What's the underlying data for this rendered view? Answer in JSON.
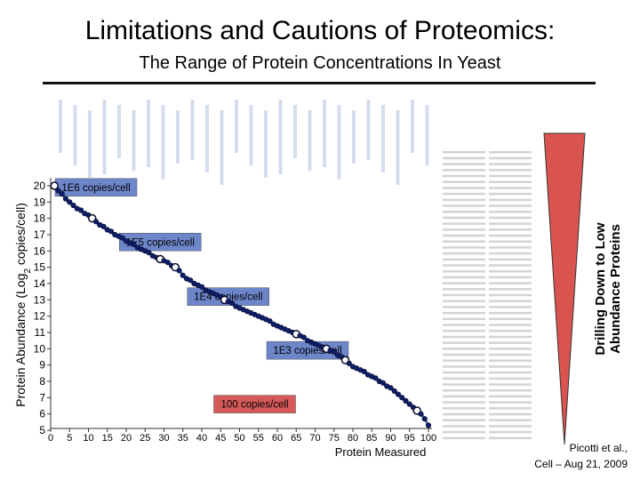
{
  "slide": {
    "title": "Limitations and Cautions of Proteomics:",
    "subtitle": "The Range of Protein Concentrations In Yeast",
    "side_label_line1": "Drilling Down to Low",
    "side_label_line2": "Abundance Proteins",
    "citation_line1": "Picotti et al.,",
    "citation_line2": "Cell – Aug 21, 2009"
  },
  "colors": {
    "line": "#1f3f7a",
    "marker_fill": "#0d1f6b",
    "marker_highlight": "#ffffff",
    "label_box_blue": "#6d86c9",
    "label_box_red": "#d65a5a",
    "triangle": "#d9534f"
  },
  "chart_data": {
    "type": "scatter",
    "xlabel": "Protein Measured",
    "ylabel": "Protein Abundance (Log2 copies/cell)",
    "xlim": [
      0,
      100
    ],
    "ylim": [
      5,
      20
    ],
    "x_ticks": [
      0,
      5,
      10,
      15,
      20,
      25,
      30,
      35,
      40,
      45,
      50,
      55,
      60,
      65,
      70,
      75,
      80,
      85,
      90,
      95,
      100
    ],
    "y_ticks": [
      5,
      6,
      7,
      8,
      9,
      10,
      11,
      12,
      13,
      14,
      15,
      16,
      17,
      18,
      19,
      20
    ],
    "grid": false,
    "annotations": [
      {
        "text": "1E6 copies/cell",
        "x": 12,
        "y": 19.9,
        "color": "blue"
      },
      {
        "text": "1E5 copies/cell",
        "x": 29,
        "y": 16.55,
        "color": "blue"
      },
      {
        "text": "1E4 copies/cell",
        "x": 47,
        "y": 13.2,
        "color": "blue"
      },
      {
        "text": "1E3 copies/cell",
        "x": 68,
        "y": 9.9,
        "color": "blue"
      },
      {
        "text": "100 copies/cell",
        "x": 54,
        "y": 6.6,
        "color": "red"
      }
    ],
    "highlighted_x": [
      1,
      11,
      29,
      33,
      46,
      65,
      73,
      78,
      97
    ],
    "series": [
      {
        "points": [
          [
            1,
            20.0
          ],
          [
            2,
            19.7
          ],
          [
            3,
            19.5
          ],
          [
            4,
            19.2
          ],
          [
            5,
            19.0
          ],
          [
            6,
            18.8
          ],
          [
            7,
            18.6
          ],
          [
            8,
            18.5
          ],
          [
            9,
            18.3
          ],
          [
            10,
            18.2
          ],
          [
            11,
            18.0
          ],
          [
            12,
            17.8
          ],
          [
            13,
            17.6
          ],
          [
            14,
            17.5
          ],
          [
            15,
            17.3
          ],
          [
            16,
            17.2
          ],
          [
            17,
            17.0
          ],
          [
            18,
            16.9
          ],
          [
            19,
            16.8
          ],
          [
            20,
            16.6
          ],
          [
            21,
            16.5
          ],
          [
            22,
            16.4
          ],
          [
            23,
            16.2
          ],
          [
            24,
            16.1
          ],
          [
            25,
            16.0
          ],
          [
            26,
            15.9
          ],
          [
            27,
            15.7
          ],
          [
            28,
            15.6
          ],
          [
            29,
            15.5
          ],
          [
            30,
            15.4
          ],
          [
            31,
            15.3
          ],
          [
            32,
            15.1
          ],
          [
            33,
            15.0
          ],
          [
            34,
            14.8
          ],
          [
            35,
            14.5
          ],
          [
            36,
            14.3
          ],
          [
            37,
            14.2
          ],
          [
            38,
            14.0
          ],
          [
            39,
            13.9
          ],
          [
            40,
            13.8
          ],
          [
            41,
            13.6
          ],
          [
            42,
            13.5
          ],
          [
            43,
            13.4
          ],
          [
            44,
            13.3
          ],
          [
            45,
            13.2
          ],
          [
            46,
            13.0
          ],
          [
            47,
            12.9
          ],
          [
            48,
            12.8
          ],
          [
            49,
            12.6
          ],
          [
            50,
            12.5
          ],
          [
            51,
            12.4
          ],
          [
            52,
            12.3
          ],
          [
            53,
            12.2
          ],
          [
            54,
            12.1
          ],
          [
            55,
            12.0
          ],
          [
            56,
            11.9
          ],
          [
            57,
            11.8
          ],
          [
            58,
            11.7
          ],
          [
            59,
            11.5
          ],
          [
            60,
            11.4
          ],
          [
            61,
            11.3
          ],
          [
            62,
            11.2
          ],
          [
            63,
            11.1
          ],
          [
            64,
            11.0
          ],
          [
            65,
            10.9
          ],
          [
            66,
            10.8
          ],
          [
            67,
            10.7
          ],
          [
            68,
            10.5
          ],
          [
            69,
            10.4
          ],
          [
            70,
            10.3
          ],
          [
            71,
            10.2
          ],
          [
            72,
            10.1
          ],
          [
            73,
            10.0
          ],
          [
            74,
            9.9
          ],
          [
            75,
            9.8
          ],
          [
            76,
            9.6
          ],
          [
            77,
            9.5
          ],
          [
            78,
            9.3
          ],
          [
            79,
            9.1
          ],
          [
            80,
            8.9
          ],
          [
            81,
            8.8
          ],
          [
            82,
            8.7
          ],
          [
            83,
            8.6
          ],
          [
            84,
            8.4
          ],
          [
            85,
            8.3
          ],
          [
            86,
            8.2
          ],
          [
            87,
            8.0
          ],
          [
            88,
            7.9
          ],
          [
            89,
            7.7
          ],
          [
            90,
            7.6
          ],
          [
            91,
            7.4
          ],
          [
            92,
            7.2
          ],
          [
            93,
            7.0
          ],
          [
            94,
            6.8
          ],
          [
            95,
            6.6
          ],
          [
            96,
            6.4
          ],
          [
            97,
            6.2
          ],
          [
            98,
            6.0
          ],
          [
            99,
            5.7
          ],
          [
            100,
            5.3
          ]
        ]
      }
    ]
  }
}
